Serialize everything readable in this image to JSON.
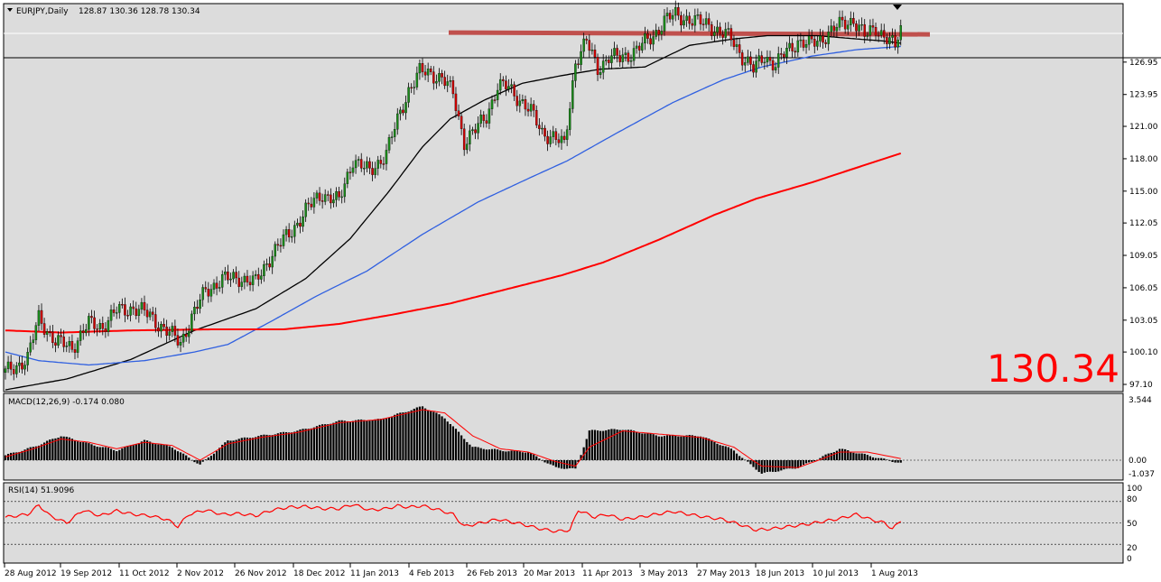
{
  "header": {
    "symbol_text": "EURJPY,Daily",
    "ohlc_text": "128.87 130.36 128.78 130.34"
  },
  "price_label": "130.34",
  "macd": {
    "label": "MACD(12,26,9) -0.174 0.080",
    "ticks": [
      "3.544",
      "0.00",
      "-1.037"
    ]
  },
  "rsi": {
    "label": "RSI(14) 51.9096",
    "ticks": [
      "100",
      "80",
      "50",
      "20",
      "0"
    ]
  },
  "chart_data": [
    {
      "type": "candlestick",
      "title": "EURJPY,Daily",
      "y_ticks": [
        "126.95",
        "123.95",
        "121.00",
        "118.00",
        "115.00",
        "112.05",
        "109.05",
        "106.05",
        "103.05",
        "100.10",
        "97.10"
      ],
      "ylim": [
        96.6,
        132.2
      ],
      "x_labels": [
        "28 Aug 2012",
        "19 Sep 2012",
        "11 Oct 2012",
        "2 Nov 2012",
        "26 Nov 2012",
        "18 Dec 2012",
        "11 Jan 2013",
        "4 Feb 2013",
        "26 Feb 2013",
        "20 Mar 2013",
        "11 Apr 2013",
        "3 May 2013",
        "27 May 2013",
        "18 Jun 2013",
        "10 Jul 2013",
        "1 Aug 2013"
      ],
      "last_price": 130.34,
      "resistance_level": 129.6,
      "close_anchors": [
        [
          0,
          98.2
        ],
        [
          8,
          99.5
        ],
        [
          12,
          103.3
        ],
        [
          18,
          101.0
        ],
        [
          24,
          100.6
        ],
        [
          30,
          102.7
        ],
        [
          35,
          102.5
        ],
        [
          40,
          103.9
        ],
        [
          46,
          104.2
        ],
        [
          52,
          103.5
        ],
        [
          58,
          102.0
        ],
        [
          63,
          101.0
        ],
        [
          67,
          103.3
        ],
        [
          72,
          105.8
        ],
        [
          78,
          106.8
        ],
        [
          84,
          107.0
        ],
        [
          90,
          106.5
        ],
        [
          96,
          109.3
        ],
        [
          102,
          111.0
        ],
        [
          108,
          113.2
        ],
        [
          114,
          114.8
        ],
        [
          120,
          114.0
        ],
        [
          125,
          118.0
        ],
        [
          131,
          116.7
        ],
        [
          137,
          118.6
        ],
        [
          141,
          121.5
        ],
        [
          145,
          124.4
        ],
        [
          149,
          126.0
        ],
        [
          153,
          125.9
        ],
        [
          157,
          125.5
        ],
        [
          161,
          124.0
        ],
        [
          165,
          119.6
        ],
        [
          169,
          120.6
        ],
        [
          173,
          122.0
        ],
        [
          177,
          124.7
        ],
        [
          181,
          124.6
        ],
        [
          185,
          123.5
        ],
        [
          189,
          122.3
        ],
        [
          193,
          120.5
        ],
        [
          197,
          120.0
        ],
        [
          201,
          119.2
        ],
        [
          205,
          127.0
        ],
        [
          209,
          128.8
        ],
        [
          213,
          126.4
        ],
        [
          217,
          127.4
        ],
        [
          221,
          127.3
        ],
        [
          225,
          127.8
        ],
        [
          229,
          128.5
        ],
        [
          233,
          129.4
        ],
        [
          237,
          130.8
        ],
        [
          241,
          131.3
        ],
        [
          245,
          131.0
        ],
        [
          249,
          130.6
        ],
        [
          253,
          130.5
        ],
        [
          257,
          129.6
        ],
        [
          261,
          129.2
        ],
        [
          265,
          127.5
        ],
        [
          269,
          126.2
        ],
        [
          273,
          127.6
        ],
        [
          277,
          126.6
        ],
        [
          281,
          128.0
        ],
        [
          285,
          128.9
        ],
        [
          289,
          128.5
        ],
        [
          293,
          129.1
        ],
        [
          297,
          129.8
        ],
        [
          301,
          130.5
        ],
        [
          305,
          130.9
        ],
        [
          309,
          129.3
        ],
        [
          313,
          130.2
        ],
        [
          317,
          129.1
        ],
        [
          320,
          128.3
        ],
        [
          322,
          130.34
        ]
      ],
      "ma_series": [
        {
          "color": "#000000",
          "points": [
            [
              0,
              96.6
            ],
            [
              22,
              97.6
            ],
            [
              45,
              99.4
            ],
            [
              68,
              102.1
            ],
            [
              90,
              104.1
            ],
            [
              108,
              106.9
            ],
            [
              124,
              110.6
            ],
            [
              138,
              115.0
            ],
            [
              150,
              119.1
            ],
            [
              160,
              121.7
            ],
            [
              172,
              123.4
            ],
            [
              186,
              125.0
            ],
            [
              200,
              125.7
            ],
            [
              214,
              126.3
            ],
            [
              230,
              126.5
            ],
            [
              246,
              128.5
            ],
            [
              262,
              129.1
            ],
            [
              274,
              129.4
            ],
            [
              292,
              129.4
            ],
            [
              306,
              129.1
            ],
            [
              316,
              128.9
            ],
            [
              322,
              128.7
            ]
          ]
        },
        {
          "color": "#3060e0",
          "points": [
            [
              0,
              100.1
            ],
            [
              12,
              99.3
            ],
            [
              30,
              98.9
            ],
            [
              50,
              99.3
            ],
            [
              68,
              100.1
            ],
            [
              80,
              100.8
            ],
            [
              96,
              103.0
            ],
            [
              112,
              105.3
            ],
            [
              130,
              107.6
            ],
            [
              150,
              111.0
            ],
            [
              170,
              114.0
            ],
            [
              190,
              116.4
            ],
            [
              202,
              117.8
            ],
            [
              220,
              120.4
            ],
            [
              240,
              123.2
            ],
            [
              258,
              125.3
            ],
            [
              272,
              126.5
            ],
            [
              290,
              127.5
            ],
            [
              306,
              128.1
            ],
            [
              322,
              128.4
            ]
          ]
        },
        {
          "color": "#ff0000",
          "points": [
            [
              0,
              102.1
            ],
            [
              20,
              101.9
            ],
            [
              45,
              102.1
            ],
            [
              75,
              102.2
            ],
            [
              100,
              102.2
            ],
            [
              120,
              102.7
            ],
            [
              140,
              103.6
            ],
            [
              160,
              104.6
            ],
            [
              180,
              105.9
            ],
            [
              200,
              107.2
            ],
            [
              215,
              108.4
            ],
            [
              235,
              110.5
            ],
            [
              255,
              112.8
            ],
            [
              270,
              114.3
            ],
            [
              290,
              115.8
            ],
            [
              310,
              117.5
            ],
            [
              322,
              118.5
            ]
          ]
        }
      ]
    },
    {
      "type": "bar",
      "title": "MACD(12,26,9)",
      "ylim": [
        -1.037,
        3.544
      ],
      "hist_anchors": [
        [
          0,
          0.3
        ],
        [
          10,
          0.8
        ],
        [
          20,
          1.5
        ],
        [
          30,
          1.0
        ],
        [
          40,
          0.6
        ],
        [
          50,
          1.2
        ],
        [
          60,
          0.8
        ],
        [
          70,
          -0.3
        ],
        [
          80,
          1.2
        ],
        [
          92,
          1.5
        ],
        [
          105,
          1.8
        ],
        [
          120,
          2.4
        ],
        [
          135,
          2.5
        ],
        [
          150,
          3.3
        ],
        [
          158,
          2.6
        ],
        [
          168,
          0.8
        ],
        [
          178,
          0.6
        ],
        [
          188,
          0.5
        ],
        [
          198,
          -0.5
        ],
        [
          205,
          -0.6
        ],
        [
          210,
          1.8
        ],
        [
          222,
          1.9
        ],
        [
          235,
          1.5
        ],
        [
          250,
          1.5
        ],
        [
          262,
          0.6
        ],
        [
          272,
          -0.9
        ],
        [
          285,
          -0.5
        ],
        [
          300,
          0.7
        ],
        [
          310,
          0.3
        ],
        [
          322,
          -0.2
        ]
      ],
      "signal_anchors": [
        [
          0,
          0.2
        ],
        [
          10,
          0.7
        ],
        [
          20,
          1.3
        ],
        [
          30,
          1.1
        ],
        [
          40,
          0.7
        ],
        [
          50,
          1.1
        ],
        [
          60,
          0.9
        ],
        [
          70,
          0.0
        ],
        [
          80,
          1.0
        ],
        [
          92,
          1.4
        ],
        [
          105,
          1.7
        ],
        [
          120,
          2.3
        ],
        [
          135,
          2.5
        ],
        [
          150,
          3.1
        ],
        [
          158,
          2.9
        ],
        [
          168,
          1.5
        ],
        [
          178,
          0.7
        ],
        [
          188,
          0.5
        ],
        [
          198,
          -0.1
        ],
        [
          205,
          -0.4
        ],
        [
          210,
          0.8
        ],
        [
          222,
          1.8
        ],
        [
          235,
          1.6
        ],
        [
          250,
          1.4
        ],
        [
          262,
          0.8
        ],
        [
          272,
          -0.4
        ],
        [
          285,
          -0.5
        ],
        [
          300,
          0.5
        ],
        [
          310,
          0.5
        ],
        [
          322,
          0.1
        ]
      ]
    },
    {
      "type": "line",
      "title": "RSI(14)",
      "ylim": [
        0,
        100
      ],
      "levels": [
        80,
        50,
        20
      ],
      "last_value": 51.9096,
      "anchors": [
        [
          0,
          58
        ],
        [
          8,
          62
        ],
        [
          12,
          75
        ],
        [
          16,
          60
        ],
        [
          22,
          50
        ],
        [
          28,
          68
        ],
        [
          34,
          60
        ],
        [
          40,
          67
        ],
        [
          46,
          62
        ],
        [
          52,
          60
        ],
        [
          58,
          55
        ],
        [
          62,
          45
        ],
        [
          66,
          62
        ],
        [
          72,
          68
        ],
        [
          78,
          62
        ],
        [
          84,
          63
        ],
        [
          90,
          60
        ],
        [
          96,
          68
        ],
        [
          102,
          72
        ],
        [
          108,
          73
        ],
        [
          114,
          70
        ],
        [
          120,
          70
        ],
        [
          125,
          76
        ],
        [
          131,
          68
        ],
        [
          137,
          70
        ],
        [
          141,
          74
        ],
        [
          145,
          72
        ],
        [
          150,
          74
        ],
        [
          156,
          68
        ],
        [
          161,
          62
        ],
        [
          165,
          45
        ],
        [
          171,
          50
        ],
        [
          177,
          55
        ],
        [
          181,
          52
        ],
        [
          186,
          48
        ],
        [
          192,
          42
        ],
        [
          198,
          38
        ],
        [
          203,
          40
        ],
        [
          206,
          68
        ],
        [
          212,
          58
        ],
        [
          216,
          62
        ],
        [
          222,
          55
        ],
        [
          228,
          58
        ],
        [
          234,
          62
        ],
        [
          240,
          66
        ],
        [
          246,
          62
        ],
        [
          252,
          58
        ],
        [
          258,
          55
        ],
        [
          264,
          48
        ],
        [
          270,
          40
        ],
        [
          276,
          42
        ],
        [
          282,
          45
        ],
        [
          288,
          48
        ],
        [
          294,
          52
        ],
        [
          300,
          56
        ],
        [
          306,
          62
        ],
        [
          311,
          55
        ],
        [
          316,
          50
        ],
        [
          319,
          42
        ],
        [
          322,
          52
        ]
      ]
    }
  ]
}
